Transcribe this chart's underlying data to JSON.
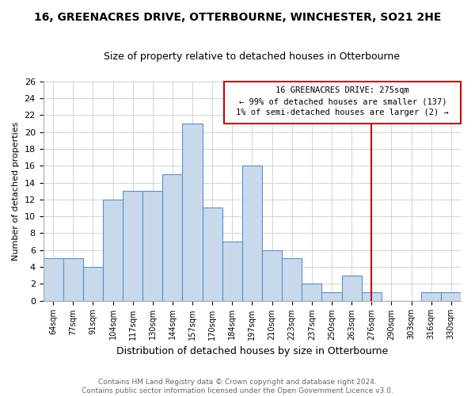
{
  "title": "16, GREENACRES DRIVE, OTTERBOURNE, WINCHESTER, SO21 2HE",
  "subtitle": "Size of property relative to detached houses in Otterbourne",
  "xlabel": "Distribution of detached houses by size in Otterbourne",
  "ylabel": "Number of detached properties",
  "footer_line1": "Contains HM Land Registry data © Crown copyright and database right 2024.",
  "footer_line2": "Contains public sector information licensed under the Open Government Licence v3.0.",
  "categories": [
    "64sqm",
    "77sqm",
    "91sqm",
    "104sqm",
    "117sqm",
    "130sqm",
    "144sqm",
    "157sqm",
    "170sqm",
    "184sqm",
    "197sqm",
    "210sqm",
    "223sqm",
    "237sqm",
    "250sqm",
    "263sqm",
    "276sqm",
    "290sqm",
    "303sqm",
    "316sqm",
    "330sqm"
  ],
  "values": [
    5,
    5,
    4,
    12,
    13,
    13,
    15,
    21,
    11,
    7,
    16,
    6,
    5,
    2,
    1,
    3,
    1,
    0,
    0,
    1,
    1
  ],
  "bar_color": "#c9d9ec",
  "bar_edge_color": "#5b8fc9",
  "grid_color": "#cccccc",
  "background_color": "#ffffff",
  "property_label": "16 GREENACRES DRIVE: 275sqm",
  "annotation_line1": "← 99% of detached houses are smaller (137)",
  "annotation_line2": "1% of semi-detached houses are larger (2) →",
  "vline_color": "#cc0000",
  "vline_index": 16,
  "annotation_box_color": "#cc0000",
  "ylim": [
    0,
    26
  ],
  "yticks": [
    0,
    2,
    4,
    6,
    8,
    10,
    12,
    14,
    16,
    18,
    20,
    22,
    24,
    26
  ],
  "title_fontsize": 10,
  "subtitle_fontsize": 9,
  "ylabel_fontsize": 8,
  "xlabel_fontsize": 9,
  "tick_fontsize": 8,
  "xtick_fontsize": 7,
  "annotation_fontsize": 7.5,
  "footer_fontsize": 6.5
}
